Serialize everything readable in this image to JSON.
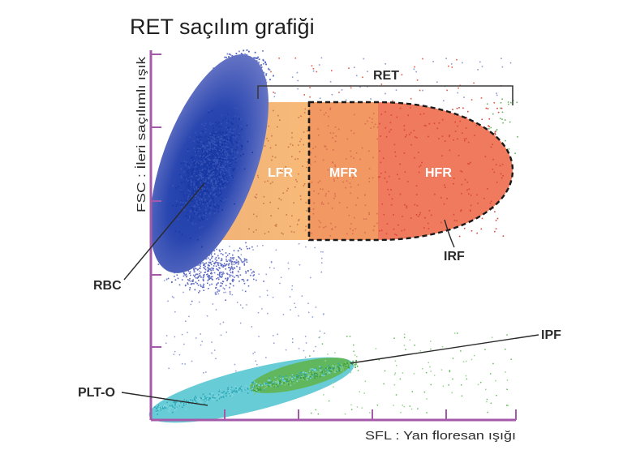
{
  "title": "RET saçılım grafiği",
  "axes": {
    "y_label": "FSC : İleri saçılımlı ışık",
    "x_label": "SFL : Yan floresan ışığı",
    "axis_color": "#a45aa8"
  },
  "regions": {
    "ret": "RET",
    "lfr": "LFR",
    "mfr": "MFR",
    "hfr": "HFR",
    "irf": "IRF",
    "rbc": "RBC",
    "plt_o": "PLT-O",
    "ipf": "IPF"
  },
  "colors": {
    "rbc_outer": "#5b6bc0",
    "rbc_inner": "#1e3ea8",
    "lfr": "#f8b36e",
    "mfr": "#f29862",
    "hfr": "#ef7a5d",
    "plt": "#4ec3cf",
    "ipf": "#56b24d"
  }
}
